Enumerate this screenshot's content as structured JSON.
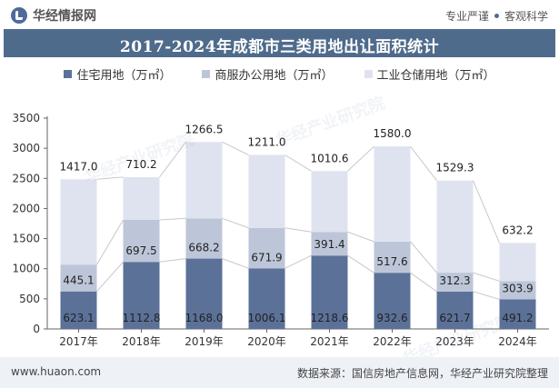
{
  "header": {
    "brand": "华经情报网",
    "tagline_left": "专业严谨",
    "tagline_right": "客观科学",
    "title": "2017-2024年成都市三类用地出让面积统计"
  },
  "footer": {
    "site": "www.huaon.com",
    "source": "数据来源：国信房地产信息网，华经产业研究院整理"
  },
  "watermark": "华经产业研究院",
  "colors": {
    "residential": "#5b7198",
    "commercial": "#bdc6d8",
    "industrial": "#dfe3ef",
    "title_bar": "#4f6b8c",
    "trend_line": "#c8c8c8"
  },
  "chart_data": {
    "type": "bar",
    "stacked": true,
    "categories": [
      "2017年",
      "2018年",
      "2019年",
      "2020年",
      "2021年",
      "2022年",
      "2023年",
      "2024年"
    ],
    "series": [
      {
        "name": "住宅用地（万㎡）",
        "values": [
          623.1,
          1112.8,
          1168.0,
          1006.1,
          1218.6,
          932.6,
          621.7,
          491.2
        ]
      },
      {
        "name": "商服办公用地（万㎡）",
        "values": [
          445.1,
          697.5,
          668.2,
          671.9,
          391.4,
          517.6,
          312.3,
          303.9
        ]
      },
      {
        "name": "工业仓储用地（万㎡）",
        "values": [
          1417.0,
          710.2,
          1266.5,
          1211.0,
          1010.6,
          1580.0,
          1529.3,
          632.2
        ]
      }
    ],
    "yticks": [
      0,
      500,
      1000,
      1500,
      2000,
      2500,
      3000,
      3500
    ],
    "ylim": [
      0,
      3500
    ],
    "grid": false,
    "legend_position": "top"
  }
}
